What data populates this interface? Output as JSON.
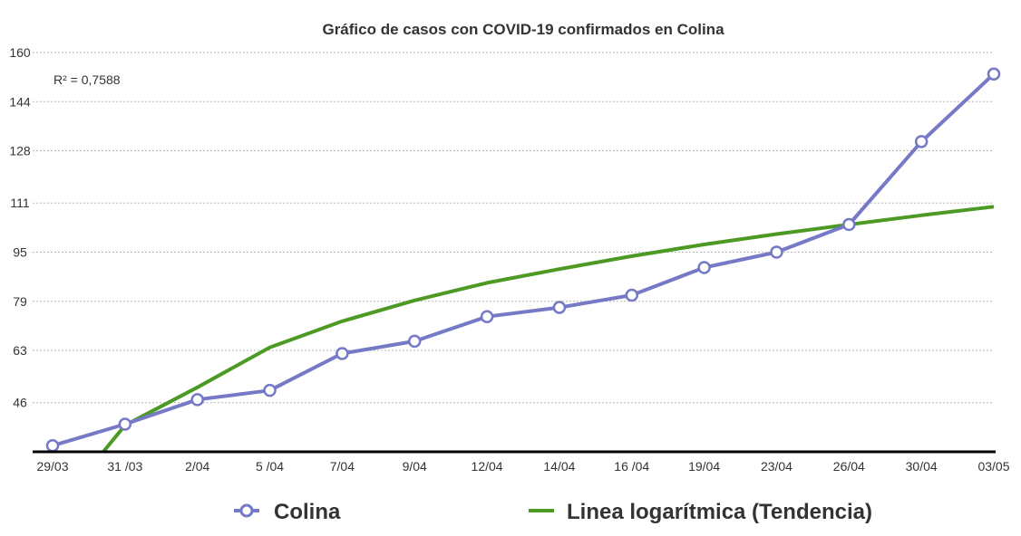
{
  "chart_data": {
    "type": "line",
    "title": "Gráfico de casos con COVID-19 confirmados en Colina",
    "xlabel": "",
    "ylabel": "",
    "categories": [
      "29/03",
      "31 /03",
      "2/04",
      "5 /04",
      "7/04",
      "9/04",
      "12/04",
      "14/04",
      "16 /04",
      "19/04",
      "23/04",
      "26/04",
      "30/04",
      "03/05"
    ],
    "y_ticks": [
      "160",
      "144",
      "128",
      "111",
      "95",
      "79",
      "63",
      "46"
    ],
    "ylim": [
      30,
      160
    ],
    "grid": true,
    "legend_position": "bottom",
    "annotation": "R² = 0,7588",
    "series": [
      {
        "name": "Colina",
        "color": "#7579c6",
        "marker": "circle-open",
        "values": [
          32,
          39,
          47,
          50,
          62,
          66,
          74,
          77,
          81,
          90,
          95,
          104,
          131,
          153
        ]
      },
      {
        "name": "Linea logarítmica (Tendencia)",
        "color": "#4c9a24",
        "marker": "none",
        "x_start": 0.7,
        "x_end": 13,
        "values": [
          30,
          38.6,
          51,
          64,
          72.5,
          79.3,
          85,
          89.5,
          93.7,
          97.5,
          100.9,
          104,
          107,
          109.8
        ]
      }
    ]
  }
}
